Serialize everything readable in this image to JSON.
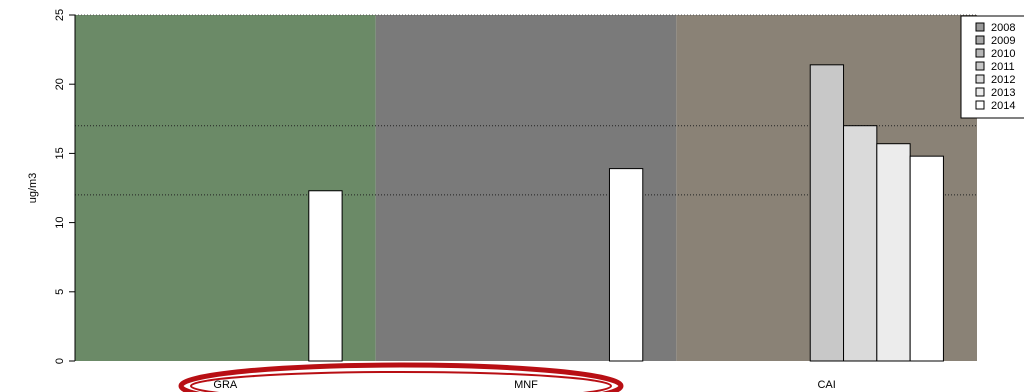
{
  "chart_data": {
    "type": "bar",
    "ylabel": "ug/m3",
    "ylim": [
      0,
      25
    ],
    "yticks": [
      "0",
      "5",
      "10",
      "15",
      "20",
      "25"
    ],
    "reference_lines": [
      17,
      12
    ],
    "panels": [
      {
        "category": "GRA",
        "color": "#6b8a67"
      },
      {
        "category": "MNF",
        "color": "#7a7a7a"
      },
      {
        "category": "CAI",
        "color": "#8a8276"
      }
    ],
    "series": [
      {
        "name": "2008",
        "color": "#9a9a9a",
        "values": [
          null,
          null,
          null
        ]
      },
      {
        "name": "2009",
        "color": "#a8a8a8",
        "values": [
          null,
          null,
          null
        ]
      },
      {
        "name": "2010",
        "color": "#b6b6b6",
        "values": [
          null,
          null,
          null
        ]
      },
      {
        "name": "2011",
        "color": "#c8c8c8",
        "values": [
          null,
          null,
          21.4
        ]
      },
      {
        "name": "2012",
        "color": "#dadada",
        "values": [
          null,
          null,
          17.0
        ]
      },
      {
        "name": "2013",
        "color": "#ececec",
        "values": [
          null,
          null,
          15.7
        ]
      },
      {
        "name": "2014",
        "color": "#ffffff",
        "values": [
          12.3,
          13.9,
          14.8
        ]
      }
    ],
    "legend_position": "top-right"
  },
  "annotation": {
    "type": "ellipse",
    "color": "#b80f14",
    "target": "GRA, MNF labels"
  }
}
